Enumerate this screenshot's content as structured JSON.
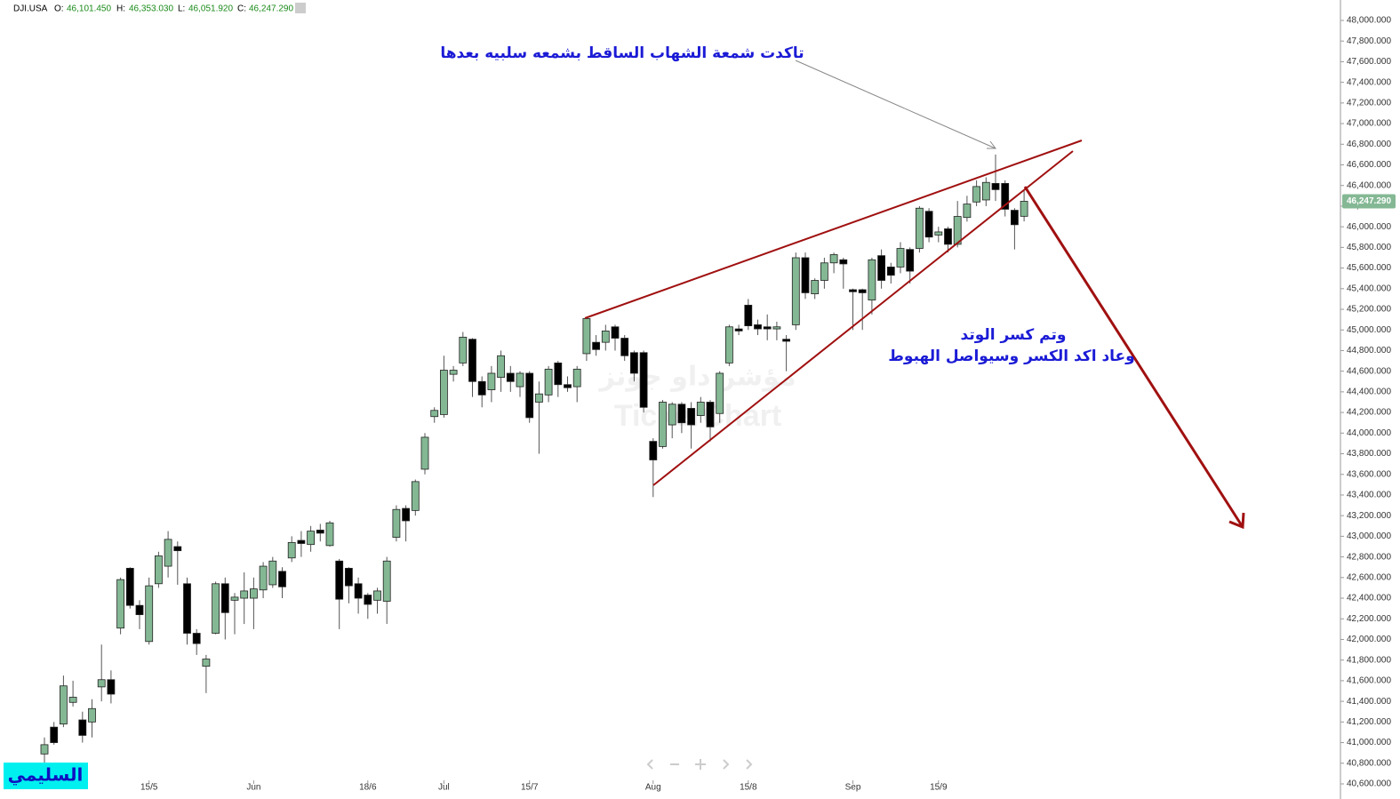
{
  "header": {
    "symbol": "DJI.USA",
    "open_label": "O:",
    "open": "46,101.450",
    "high_label": "H:",
    "high": "46,353.030",
    "low_label": "L:",
    "low": "46,051.920",
    "close_label": "C:",
    "close": "46,247.290"
  },
  "chart_data": {
    "type": "candlestick",
    "annotations": [
      "تاكدت شمعة الشهاب الساقط بشمعه سلبيه بعدها",
      "وتم كسر الوتد",
      "وعاد اكد الكسر وسيواصل الهبوط"
    ],
    "watermark": [
      "مؤشر داو جونز",
      "TickerChart"
    ],
    "author": "السليمي",
    "up_color": "#84b894",
    "down_color": "#000000",
    "grid": false,
    "last_price": {
      "value": 46247.29,
      "label": "46,247.290"
    },
    "categories": [
      null,
      null,
      null,
      null,
      null,
      null,
      null,
      null,
      null,
      null,
      null,
      "15/5",
      null,
      null,
      null,
      null,
      null,
      null,
      null,
      null,
      null,
      null,
      "Jun",
      null,
      null,
      null,
      null,
      null,
      null,
      null,
      null,
      null,
      null,
      null,
      "18/6",
      null,
      null,
      null,
      null,
      null,
      null,
      null,
      "Jul",
      null,
      null,
      null,
      null,
      null,
      null,
      null,
      null,
      "15/7",
      null,
      null,
      null,
      null,
      null,
      null,
      null,
      null,
      null,
      null,
      null,
      null,
      "Aug",
      null,
      null,
      null,
      null,
      null,
      null,
      null,
      null,
      null,
      "15/8",
      null,
      null,
      null,
      null,
      null,
      null,
      null,
      null,
      null,
      null,
      "Sep",
      null,
      null,
      null,
      null,
      null,
      null,
      null,
      null,
      "15/9",
      null,
      null,
      null,
      null,
      null,
      null,
      null,
      null,
      null
    ],
    "open": [
      40890,
      41150,
      41180,
      41390,
      41220,
      41200,
      41540,
      41610,
      42110,
      42690,
      42330,
      41980,
      42540,
      42710,
      42900,
      42540,
      42060,
      41740,
      42060,
      42540,
      42380,
      42400,
      42400,
      42480,
      42530,
      42660,
      42790,
      42960,
      42920,
      43060,
      42910,
      42760,
      42690,
      42540,
      42430,
      42380,
      42370,
      42990,
      43270,
      43250,
      43650,
      44160,
      44180,
      44570,
      44680,
      44910,
      44500,
      44420,
      44540,
      44580,
      44450,
      44580,
      44300,
      44370,
      44680,
      44470,
      44450,
      44770,
      44880,
      44880,
      45030,
      44920,
      44780,
      44780,
      43920,
      43870,
      44080,
      44280,
      44240,
      44170,
      44300,
      44190,
      44680,
      45010,
      45240,
      45050,
      45030,
      45010,
      44910,
      45050,
      45700,
      45350,
      45480,
      45650,
      45680,
      45390,
      45390,
      45290,
      45720,
      45610,
      45610,
      45780,
      45790,
      46150,
      45920,
      45980,
      45830,
      46090,
      46240,
      46260,
      46420,
      46420,
      46160,
      46101.45
    ],
    "high": [
      41050,
      41200,
      41650,
      41600,
      41300,
      41420,
      41950,
      41700,
      42600,
      42700,
      42380,
      42600,
      42850,
      43050,
      42950,
      42600,
      42100,
      41850,
      42560,
      42600,
      42450,
      42650,
      42600,
      42750,
      42800,
      42700,
      43000,
      43050,
      43100,
      43120,
      43150,
      42780,
      42700,
      42600,
      42450,
      42500,
      42800,
      43300,
      43300,
      43550,
      44000,
      44250,
      44750,
      44650,
      44980,
      44920,
      44550,
      44650,
      44800,
      44650,
      44600,
      44600,
      44500,
      44650,
      44700,
      44550,
      44650,
      45120,
      44950,
      45050,
      45050,
      44950,
      44800,
      44800,
      43950,
      44320,
      44300,
      44300,
      44300,
      44350,
      44320,
      44600,
      45050,
      45050,
      45300,
      45100,
      45150,
      45080,
      44950,
      45750,
      45750,
      45500,
      45700,
      45750,
      45700,
      45400,
      45400,
      45700,
      45780,
      45650,
      45850,
      45800,
      46200,
      46180,
      46000,
      46000,
      46250,
      46300,
      46450,
      46480,
      46700,
      46450,
      46180,
      46353.03
    ],
    "low": [
      40800,
      40980,
      41150,
      41350,
      41000,
      41050,
      41400,
      41380,
      42050,
      42300,
      42100,
      41950,
      42500,
      42600,
      42530,
      41950,
      41850,
      41480,
      42050,
      42000,
      42050,
      42150,
      42100,
      42400,
      42500,
      42400,
      42750,
      42800,
      42850,
      42950,
      42900,
      42100,
      42350,
      42250,
      42200,
      42250,
      42150,
      42950,
      42950,
      43200,
      43600,
      44100,
      44150,
      44500,
      44650,
      44350,
      44250,
      44300,
      44400,
      44400,
      44350,
      44100,
      43800,
      44300,
      44350,
      44400,
      44300,
      44700,
      44750,
      44800,
      44800,
      44700,
      44500,
      44200,
      43380,
      43850,
      43950,
      44000,
      43850,
      44100,
      43920,
      44100,
      44650,
      44950,
      45000,
      44950,
      44900,
      44900,
      44600,
      45000,
      45300,
      45300,
      45400,
      45550,
      45400,
      45000,
      45000,
      45150,
      45400,
      45450,
      45550,
      45450,
      45750,
      45850,
      45850,
      45750,
      45800,
      46050,
      46200,
      46200,
      46250,
      46100,
      45780,
      46051.92
    ],
    "close": [
      40980,
      41000,
      41550,
      41440,
      41070,
      41330,
      41610,
      41470,
      42580,
      42330,
      42240,
      42520,
      42810,
      42970,
      42860,
      42060,
      41960,
      41810,
      42540,
      42260,
      42410,
      42470,
      42490,
      42710,
      42760,
      42510,
      42940,
      42930,
      43050,
      43030,
      43130,
      42390,
      42520,
      42400,
      42340,
      42470,
      42760,
      43260,
      43150,
      43530,
      43960,
      44220,
      44610,
      44610,
      44930,
      44500,
      44370,
      44580,
      44750,
      44500,
      44580,
      44150,
      44380,
      44620,
      44470,
      44440,
      44620,
      45110,
      44810,
      44990,
      44920,
      44750,
      44580,
      44250,
      43740,
      44300,
      44280,
      44100,
      44080,
      44300,
      44060,
      44580,
      45030,
      44990,
      45040,
      45010,
      45010,
      45030,
      44890,
      45700,
      45360,
      45480,
      45650,
      45730,
      45640,
      45370,
      45360,
      45680,
      45480,
      45530,
      45790,
      45570,
      46180,
      45900,
      45950,
      45830,
      46100,
      46220,
      46390,
      46430,
      46360,
      46170,
      46020,
      46247.29
    ],
    "ylim": [
      40531,
      48198
    ],
    "yticks": [
      {
        "value": 40600,
        "label": "40,600.000"
      },
      {
        "value": 40800,
        "label": "40,800.000"
      },
      {
        "value": 41000,
        "label": "41,000.000"
      },
      {
        "value": 41200,
        "label": "41,200.000"
      },
      {
        "value": 41400,
        "label": "41,400.000"
      },
      {
        "value": 41600,
        "label": "41,600.000"
      },
      {
        "value": 41800,
        "label": "41,800.000"
      },
      {
        "value": 42000,
        "label": "42,000.000"
      },
      {
        "value": 42200,
        "label": "42,200.000"
      },
      {
        "value": 42400,
        "label": "42,400.000"
      },
      {
        "value": 42600,
        "label": "42,600.000"
      },
      {
        "value": 42800,
        "label": "42,800.000"
      },
      {
        "value": 43000,
        "label": "43,000.000"
      },
      {
        "value": 43200,
        "label": "43,200.000"
      },
      {
        "value": 43400,
        "label": "43,400.000"
      },
      {
        "value": 43600,
        "label": "43,600.000"
      },
      {
        "value": 43800,
        "label": "43,800.000"
      },
      {
        "value": 44000,
        "label": "44,000.000"
      },
      {
        "value": 44200,
        "label": "44,200.000"
      },
      {
        "value": 44400,
        "label": "44,400.000"
      },
      {
        "value": 44600,
        "label": "44,600.000"
      },
      {
        "value": 44800,
        "label": "44,800.000"
      },
      {
        "value": 45000,
        "label": "45,000.000"
      },
      {
        "value": 45200,
        "label": "45,200.000"
      },
      {
        "value": 45400,
        "label": "45,400.000"
      },
      {
        "value": 45600,
        "label": "45,600.000"
      },
      {
        "value": 45800,
        "label": "45,800.000"
      },
      {
        "value": 46000,
        "label": "46,000.000"
      },
      {
        "value": 46200,
        "label": "46,200.000"
      },
      {
        "value": 46400,
        "label": "46,400.000"
      },
      {
        "value": 46600,
        "label": "46,600.000"
      },
      {
        "value": 46800,
        "label": "46,800.000"
      },
      {
        "value": 47000,
        "label": "47,000.000"
      },
      {
        "value": 47200,
        "label": "47,200.000"
      },
      {
        "value": 47400,
        "label": "47,400.000"
      },
      {
        "value": 47600,
        "label": "47,600.000"
      },
      {
        "value": 47800,
        "label": "47,800.000"
      },
      {
        "value": 48000,
        "label": "48,000.000"
      }
    ]
  }
}
